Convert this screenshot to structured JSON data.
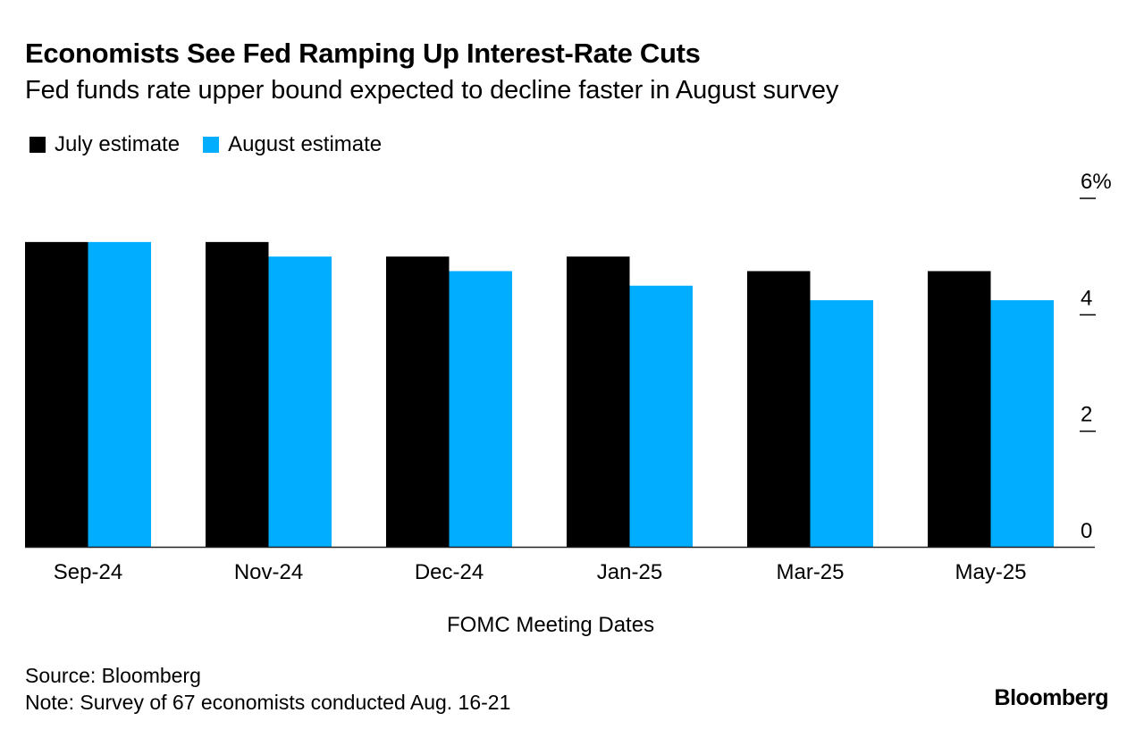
{
  "chart_data": {
    "type": "bar",
    "title": "Economists See Fed Ramping Up Interest-Rate Cuts",
    "subtitle": "Fed funds rate upper bound expected to decline faster in August survey",
    "xlabel": "FOMC Meeting Dates",
    "ylabel": "",
    "categories": [
      "Sep-24",
      "Nov-24",
      "Dec-24",
      "Jan-25",
      "Mar-25",
      "May-25"
    ],
    "series": [
      {
        "name": "July estimate",
        "color": "#000000",
        "values": [
          5.25,
          5.25,
          5.0,
          5.0,
          4.75,
          4.75
        ]
      },
      {
        "name": "August estimate",
        "color": "#00adff",
        "values": [
          5.25,
          5.0,
          4.75,
          4.5,
          4.25,
          4.25
        ]
      }
    ],
    "ylim": [
      0,
      6
    ],
    "yticks": [
      {
        "value": 0,
        "label": "0"
      },
      {
        "value": 2,
        "label": "2"
      },
      {
        "value": 4,
        "label": "4"
      },
      {
        "value": 6,
        "label": "6%"
      }
    ],
    "y_axis_position": "right",
    "legend_position": "top-left",
    "grid": false
  },
  "footer": {
    "source": "Source: Bloomberg",
    "note": "Note: Survey of 67 economists conducted Aug. 16-21",
    "brand": "Bloomberg"
  }
}
